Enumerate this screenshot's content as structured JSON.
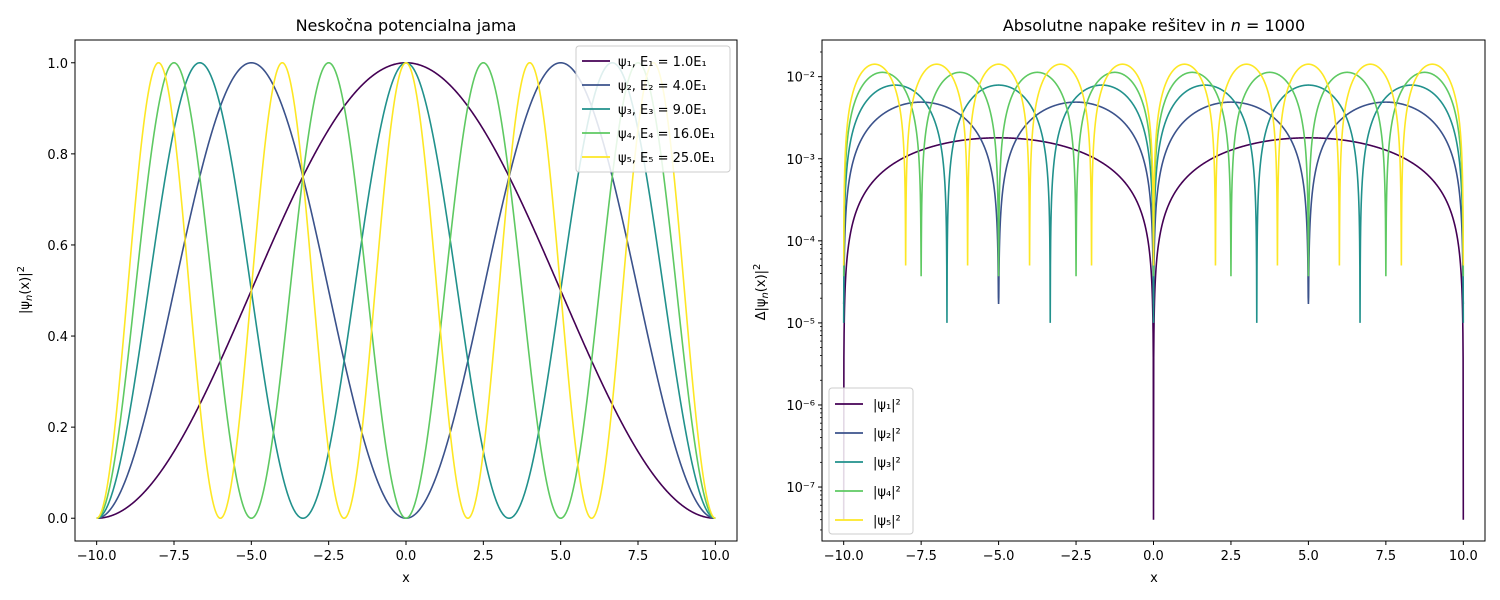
{
  "chart_data": [
    {
      "type": "line",
      "title": "Neskočna potencialna jama",
      "xlabel": "x",
      "ylabel": "|ψ_n(x)|²",
      "xlim": [
        -10.7,
        10.7
      ],
      "ylim": [
        -0.05,
        1.05
      ],
      "xticks": [
        -10,
        -7.5,
        -5,
        -2.5,
        0,
        2.5,
        5,
        7.5,
        10
      ],
      "xtick_labels": [
        "−10.0",
        "−7.5",
        "−5.0",
        "−2.5",
        "0.0",
        "2.5",
        "5.0",
        "7.5",
        "10.0"
      ],
      "yticks": [
        0,
        0.2,
        0.4,
        0.6,
        0.8,
        1.0
      ],
      "ytick_labels": [
        "0.0",
        "0.2",
        "0.4",
        "0.6",
        "0.8",
        "1.0"
      ],
      "x_range": [
        -10,
        10
      ],
      "grid": false,
      "legend_position": "top-right",
      "series": [
        {
          "name": "ψ₁, E₁ = 1.0E₁",
          "n": 1,
          "color": "#440154"
        },
        {
          "name": "ψ₂, E₂ = 4.0E₁",
          "n": 2,
          "color": "#3b528b"
        },
        {
          "name": "ψ₃, E₃ = 9.0E₁",
          "n": 3,
          "color": "#21918c"
        },
        {
          "name": "ψ₄, E₄ = 16.0E₁",
          "n": 4,
          "color": "#5ec962"
        },
        {
          "name": "ψ₅, E₅ = 25.0E₁",
          "n": 5,
          "color": "#fde725"
        }
      ]
    },
    {
      "type": "line",
      "title": "Absolutne napake rešitev in n = 1000",
      "xlabel": "x",
      "ylabel": "Δ|ψ_n(x)|²",
      "yscale": "log",
      "xlim": [
        -10.7,
        10.7
      ],
      "ylim": [
        2.2e-08,
        0.028
      ],
      "xticks": [
        -10,
        -7.5,
        -5,
        -2.5,
        0,
        2.5,
        5,
        7.5,
        10
      ],
      "xtick_labels": [
        "−10.0",
        "−7.5",
        "−5.0",
        "−2.5",
        "0.0",
        "2.5",
        "5.0",
        "7.5",
        "10.0"
      ],
      "yticks": [
        1e-07,
        1e-06,
        1e-05,
        0.0001,
        0.001,
        0.01
      ],
      "ytick_labels": [
        "10⁻⁷",
        "10⁻⁶",
        "10⁻⁵",
        "10⁻⁴",
        "10⁻³",
        "10⁻²"
      ],
      "x_range": [
        -10,
        10
      ],
      "grid": false,
      "legend_position": "bottom-left",
      "series": [
        {
          "name": "|ψ₁|²",
          "n": 1,
          "color": "#440154",
          "peak": 0.0018,
          "dip_min": 4e-08
        },
        {
          "name": "|ψ₂|²",
          "n": 2,
          "color": "#3b528b",
          "peak": 0.0049,
          "dip_min": 1.7e-05
        },
        {
          "name": "|ψ₃|²",
          "n": 3,
          "color": "#21918c",
          "peak": 0.0079,
          "dip_min": 1e-05
        },
        {
          "name": "|ψ₄|²",
          "n": 4,
          "color": "#5ec962",
          "peak": 0.0113,
          "dip_min": 3.7e-05
        },
        {
          "name": "|ψ₅|²",
          "n": 5,
          "color": "#fde725",
          "peak": 0.0142,
          "dip_min": 5e-05
        }
      ]
    }
  ]
}
